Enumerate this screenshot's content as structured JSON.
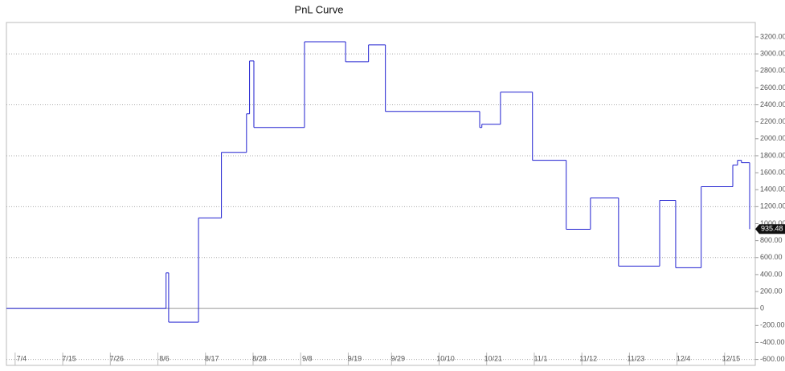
{
  "chart_data": {
    "type": "step",
    "title": "PnL Curve",
    "series": [
      {
        "color": "#2020d0",
        "x": [
          -3.5,
          33.4,
          34,
          40.9,
          46.2,
          52,
          52.7,
          53.7,
          65.4,
          74.9,
          80.2,
          84.1,
          105.9,
          106.4,
          110.7,
          118.1,
          125.9,
          131.5,
          138,
          147.5,
          151.2,
          157.1,
          164.4,
          165.5,
          166.4,
          168.3
        ],
        "values": [
          0,
          420,
          -160,
          1067,
          1840,
          2294,
          2917,
          2133,
          3143,
          2907,
          3106,
          2322,
          2133,
          2171,
          2549,
          1746,
          934,
          1303,
          500,
          1274,
          481,
          1435,
          1690,
          1746,
          1718,
          935.48
        ]
      }
    ],
    "last_value_label": "935.48",
    "xlim": [
      -3.5,
      169.6
    ],
    "xticks": [
      {
        "value": 0,
        "label": "7/4"
      },
      {
        "value": 11,
        "label": "7/15"
      },
      {
        "value": 22,
        "label": "7/26"
      },
      {
        "value": 33,
        "label": "8/6"
      },
      {
        "value": 44,
        "label": "8/17"
      },
      {
        "value": 55,
        "label": "8/28"
      },
      {
        "value": 66,
        "label": "9/8"
      },
      {
        "value": 77,
        "label": "9/19"
      },
      {
        "value": 87,
        "label": "9/29"
      },
      {
        "value": 98,
        "label": "10/10"
      },
      {
        "value": 109,
        "label": "10/21"
      },
      {
        "value": 120,
        "label": "11/1"
      },
      {
        "value": 131,
        "label": "11/12"
      },
      {
        "value": 142,
        "label": "11/23"
      },
      {
        "value": 153,
        "label": "12/4"
      },
      {
        "value": 164,
        "label": "12/15"
      }
    ],
    "ylim": [
      -670,
      3370
    ],
    "yticks": [
      {
        "value": 3200,
        "label": "3200.00"
      },
      {
        "value": 3000,
        "label": "3000.00"
      },
      {
        "value": 2800,
        "label": "2800.00"
      },
      {
        "value": 2600,
        "label": "2600.00"
      },
      {
        "value": 2400,
        "label": "2400.00"
      },
      {
        "value": 2200,
        "label": "2200.00"
      },
      {
        "value": 2000,
        "label": "2000.00"
      },
      {
        "value": 1800,
        "label": "1800.00"
      },
      {
        "value": 1600,
        "label": "1600.00"
      },
      {
        "value": 1400,
        "label": "1400.00"
      },
      {
        "value": 1200,
        "label": "1200.00"
      },
      {
        "value": 1000,
        "label": "1000.00"
      },
      {
        "value": 800,
        "label": "800.00"
      },
      {
        "value": 600,
        "label": "600.00"
      },
      {
        "value": 400,
        "label": "400.00"
      },
      {
        "value": 200,
        "label": "200.00"
      },
      0,
      {
        "value": -200,
        "label": "-200.00"
      },
      {
        "value": -400,
        "label": "-400.00"
      },
      {
        "value": -600,
        "label": "-600.00"
      }
    ],
    "ygrid": [
      3000,
      2400,
      1800,
      1200,
      600,
      -600
    ]
  }
}
